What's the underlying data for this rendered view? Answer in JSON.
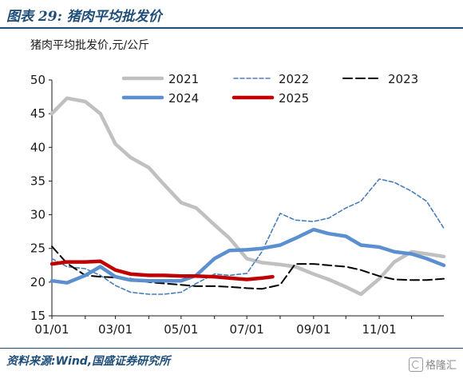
{
  "header": {
    "title": "图表 29:  猪肉平均批发价"
  },
  "footer": {
    "source": "资料来源:Wind,国盛证券研究所",
    "watermark": "格隆汇"
  },
  "chart_data": {
    "type": "line",
    "title": "",
    "ylabel": "猪肉平均批发价,元/公斤",
    "xlabel": "",
    "x_ticks": [
      "01/01",
      "03/01",
      "05/01",
      "07/01",
      "09/01",
      "11/01"
    ],
    "y_ticks": [
      15,
      20,
      25,
      30,
      35,
      40,
      45,
      50
    ],
    "ylim": [
      15,
      50
    ],
    "xlim": [
      "01/01",
      "12/31"
    ],
    "grid": false,
    "legend_placement": "top",
    "series": [
      {
        "name": "2021",
        "color": "#c0c0c0",
        "style": "solid-thick",
        "x": [
          "01/01",
          "01/15",
          "02/01",
          "02/15",
          "03/01",
          "03/15",
          "04/01",
          "04/15",
          "05/01",
          "05/15",
          "06/01",
          "06/15",
          "07/01",
          "07/15",
          "08/01",
          "08/15",
          "09/01",
          "09/15",
          "10/01",
          "10/15",
          "11/01",
          "11/15",
          "12/01",
          "12/15",
          "12/31"
        ],
        "y": [
          45,
          47.3,
          46.8,
          45,
          40.5,
          38.5,
          37,
          34.5,
          31.8,
          31,
          28.5,
          26.5,
          23.5,
          22.9,
          22.6,
          22.3,
          21.2,
          20.4,
          19.3,
          18.2,
          20.5,
          23,
          24.5,
          24.2,
          23.8
        ]
      },
      {
        "name": "2022",
        "color": "#4a7ebb",
        "style": "dashed",
        "x": [
          "01/01",
          "01/15",
          "02/01",
          "02/15",
          "03/01",
          "03/15",
          "04/01",
          "04/15",
          "05/01",
          "05/15",
          "06/01",
          "06/15",
          "07/01",
          "07/15",
          "08/01",
          "08/15",
          "09/01",
          "09/15",
          "10/01",
          "10/15",
          "11/01",
          "11/15",
          "12/01",
          "12/15",
          "12/31"
        ],
        "y": [
          23.5,
          22.3,
          22,
          21,
          19.5,
          18.5,
          18.2,
          18.2,
          18.5,
          19.8,
          21.2,
          21,
          21.3,
          24.5,
          30.2,
          29.2,
          29,
          29.5,
          31,
          32,
          35.3,
          34.8,
          33.5,
          32,
          28
        ]
      },
      {
        "name": "2023",
        "color": "#000000",
        "style": "dashed-long",
        "x": [
          "01/01",
          "01/15",
          "02/01",
          "02/15",
          "03/01",
          "03/15",
          "04/01",
          "04/15",
          "05/01",
          "05/15",
          "06/01",
          "06/15",
          "07/01",
          "07/15",
          "08/01",
          "08/15",
          "09/01",
          "09/15",
          "10/01",
          "10/15",
          "11/01",
          "11/15",
          "12/01",
          "12/15",
          "12/31"
        ],
        "y": [
          25.3,
          22.8,
          21,
          20.8,
          20.7,
          20.5,
          20,
          19.8,
          19.6,
          19.4,
          19.4,
          19.3,
          19.1,
          19,
          19.6,
          22.7,
          22.7,
          22.5,
          22.3,
          21.8,
          20.9,
          20.4,
          20.3,
          20.3,
          20.5
        ]
      },
      {
        "name": "2024",
        "color": "#5b8fd0",
        "style": "solid-thick",
        "x": [
          "01/01",
          "01/15",
          "02/01",
          "02/15",
          "03/01",
          "03/15",
          "04/01",
          "04/15",
          "05/01",
          "05/15",
          "06/01",
          "06/15",
          "07/01",
          "07/15",
          "08/01",
          "08/15",
          "09/01",
          "09/15",
          "10/01",
          "10/15",
          "11/01",
          "11/15",
          "12/01",
          "12/15",
          "12/31"
        ],
        "y": [
          20.2,
          19.9,
          21,
          22.3,
          20.8,
          20.3,
          20.2,
          20.2,
          20.2,
          21,
          23.5,
          24.7,
          24.8,
          25,
          25.5,
          26.5,
          27.8,
          27.2,
          26.8,
          25.5,
          25.2,
          24.5,
          24.2,
          23.5,
          22.5
        ]
      },
      {
        "name": "2025",
        "color": "#c00000",
        "style": "solid-thick",
        "x": [
          "01/01",
          "01/15",
          "02/01",
          "02/15",
          "03/01",
          "03/15",
          "04/01",
          "04/15",
          "05/01",
          "05/15",
          "06/01",
          "06/15",
          "07/01",
          "07/15",
          "07/25"
        ],
        "y": [
          22.7,
          23,
          23,
          23.1,
          21.8,
          21.2,
          21,
          21,
          20.9,
          20.9,
          20.8,
          20.6,
          20.4,
          20.6,
          20.8
        ]
      }
    ]
  }
}
